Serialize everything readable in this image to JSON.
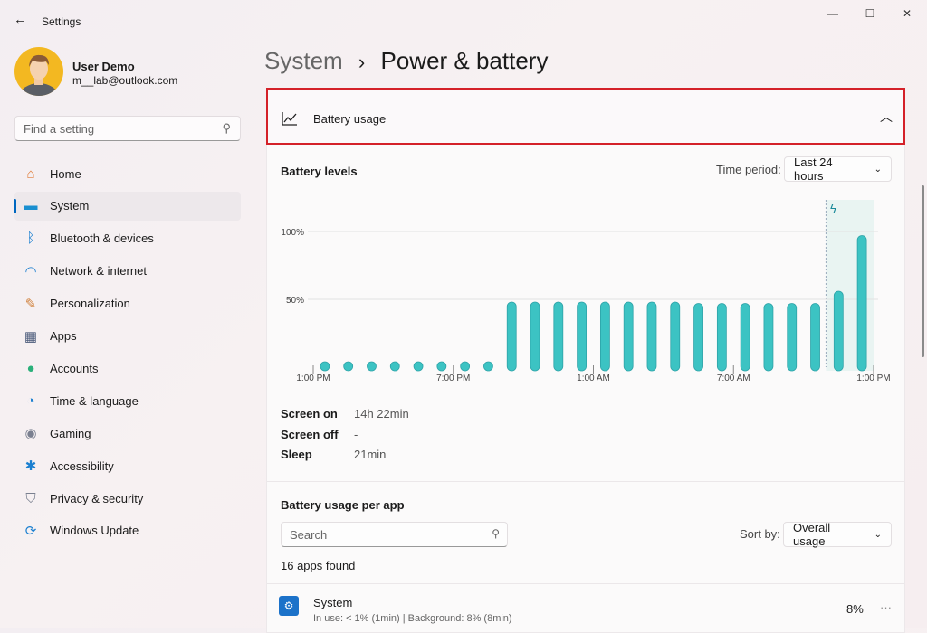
{
  "window": {
    "title": "Settings",
    "minimize": "—",
    "maximize": "☐",
    "close": "✕"
  },
  "user": {
    "name": "User Demo",
    "email": "m__lab@outlook.com"
  },
  "search": {
    "placeholder": "Find a setting"
  },
  "sidebar": {
    "items": [
      {
        "label": "Home",
        "icon": "home-icon",
        "glyph": "⌂",
        "color": "#e07a35"
      },
      {
        "label": "System",
        "icon": "system-icon",
        "glyph": "▬",
        "color": "#1a8fd0"
      },
      {
        "label": "Bluetooth & devices",
        "icon": "bluetooth-icon",
        "glyph": "ᛒ",
        "color": "#1a7fd0"
      },
      {
        "label": "Network & internet",
        "icon": "wifi-icon",
        "glyph": "◠",
        "color": "#1a7fd0"
      },
      {
        "label": "Personalization",
        "icon": "brush-icon",
        "glyph": "✎",
        "color": "#d0803a"
      },
      {
        "label": "Apps",
        "icon": "apps-icon",
        "glyph": "▦",
        "color": "#4a5a7a"
      },
      {
        "label": "Accounts",
        "icon": "accounts-icon",
        "glyph": "●",
        "color": "#2bb07a"
      },
      {
        "label": "Time & language",
        "icon": "clock-globe-icon",
        "glyph": "◔",
        "color": "#1a7fd0"
      },
      {
        "label": "Gaming",
        "icon": "gamepad-icon",
        "glyph": "◉",
        "color": "#7a8090"
      },
      {
        "label": "Accessibility",
        "icon": "accessibility-icon",
        "glyph": "✱",
        "color": "#1a7fd0"
      },
      {
        "label": "Privacy & security",
        "icon": "shield-icon",
        "glyph": "⛉",
        "color": "#7a8090"
      },
      {
        "label": "Windows Update",
        "icon": "update-icon",
        "glyph": "⟳",
        "color": "#1a7fd0"
      }
    ],
    "selected": 1
  },
  "breadcrumb": {
    "parent": "System",
    "separator": "›",
    "current": "Power & battery"
  },
  "battery_usage": {
    "title": "Battery usage",
    "expanded": true
  },
  "battery_levels": {
    "title": "Battery levels",
    "time_period_label": "Time period:",
    "time_period_value": "Last 24 hours"
  },
  "chart_data": {
    "type": "bar",
    "y_ticks": [
      "100%",
      "50%"
    ],
    "ylim": [
      0,
      100
    ],
    "x_tick_labels": [
      "1:00 PM",
      "7:00 PM",
      "1:00 AM",
      "7:00 AM",
      "1:00 PM"
    ],
    "values": [
      2,
      2,
      2,
      2,
      2,
      2,
      2,
      2,
      48,
      48,
      48,
      48,
      48,
      48,
      48,
      48,
      47,
      47,
      47,
      47,
      47,
      47,
      56,
      97
    ],
    "charging_from_index": 22,
    "color": "#3cc3c3",
    "charging_highlight": "#e9f4f2"
  },
  "stats": [
    {
      "label": "Screen on",
      "value": "14h 22min"
    },
    {
      "label": "Screen off",
      "value": "-"
    },
    {
      "label": "Sleep",
      "value": "21min"
    }
  ],
  "per_app": {
    "title": "Battery usage per app",
    "search_placeholder": "Search",
    "sort_label": "Sort by:",
    "sort_value": "Overall usage",
    "count": "16 apps found",
    "apps": [
      {
        "name": "System",
        "detail": "In use: < 1% (1min) | Background: 8% (8min)",
        "percent": "8%",
        "more": "···"
      }
    ]
  }
}
